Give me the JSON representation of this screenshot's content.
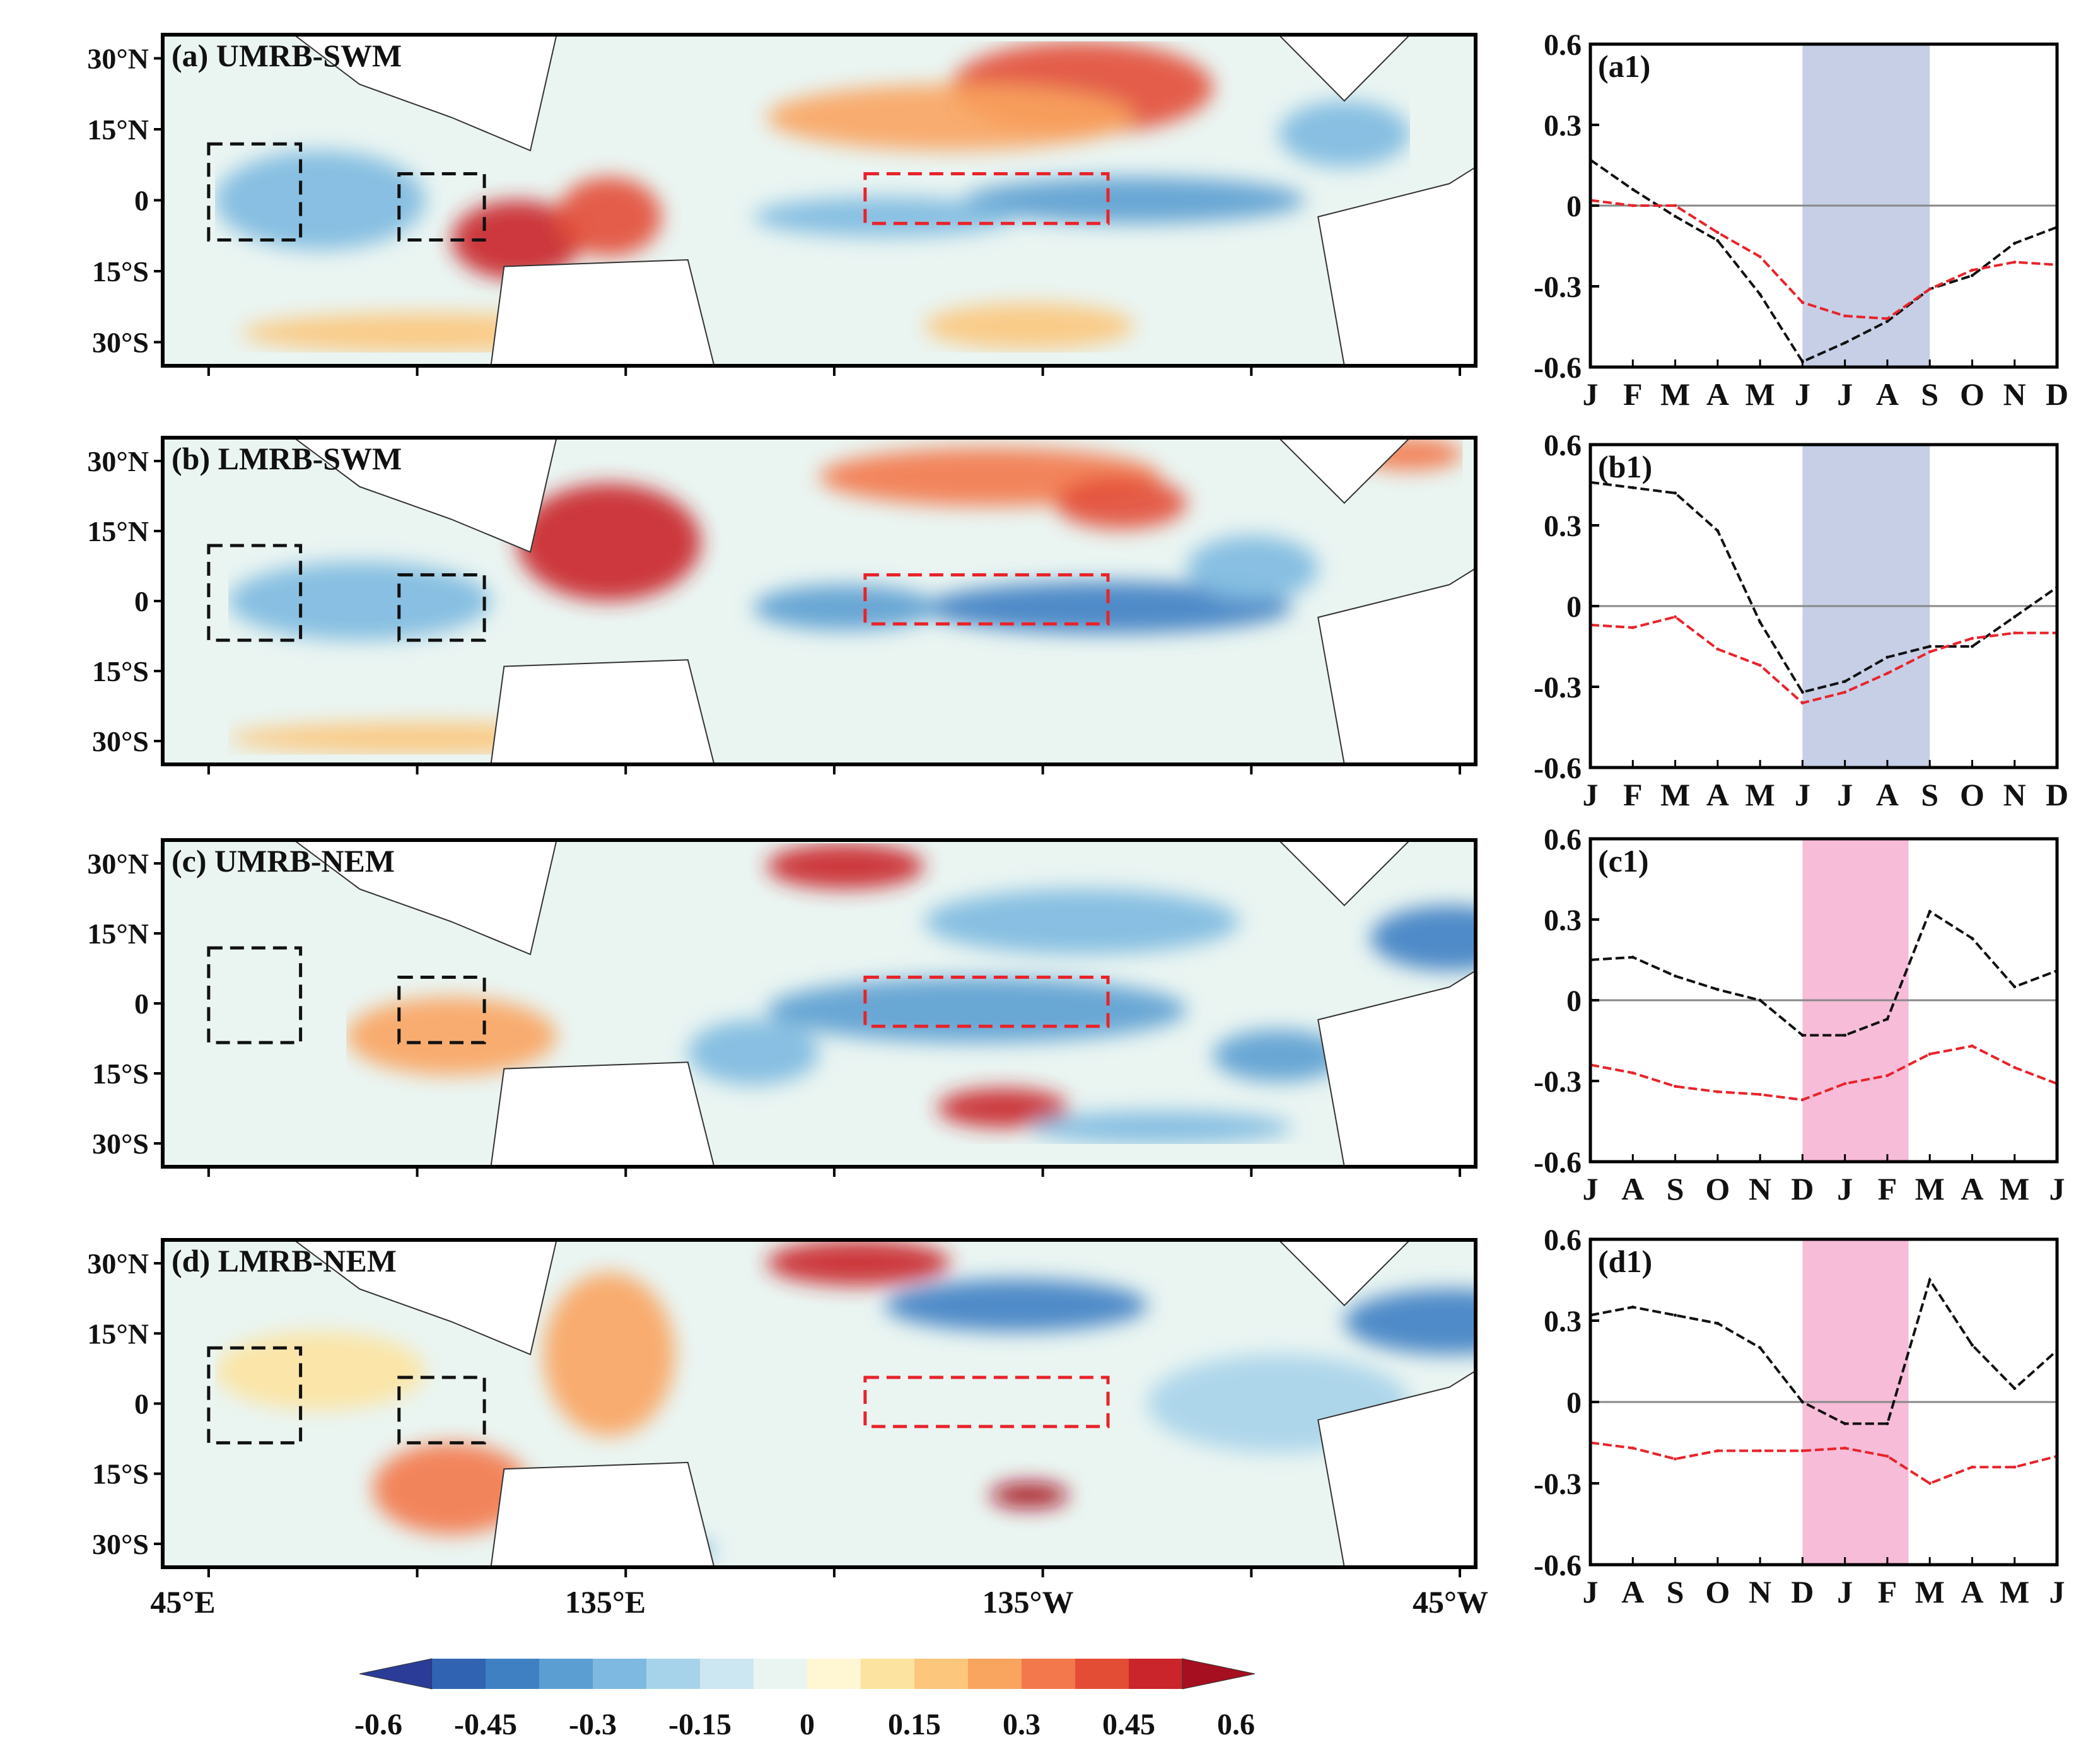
{
  "figure": {
    "lat_ticks": [
      "30°N",
      "15°N",
      "0",
      "15°S",
      "30°S"
    ],
    "lon_ticks": [
      "45°E",
      "135°E",
      "135°W",
      "45°W"
    ],
    "colorbar": {
      "ticks": [
        "-0.6",
        "-0.45",
        "-0.3",
        "-0.15",
        "0",
        "0.15",
        "0.3",
        "0.45",
        "0.6"
      ],
      "colors": [
        "#2a3c97",
        "#3063b2",
        "#3f80c3",
        "#5b9ed2",
        "#7db9e0",
        "#a7d3ea",
        "#cce6f2",
        "#eaf5f2",
        "#fff6d3",
        "#fde3a0",
        "#fcc67d",
        "#f9a45f",
        "#f3784b",
        "#e34d36",
        "#c9252a",
        "#a50f1f"
      ]
    },
    "lines": {
      "black": "#111111",
      "red": "#e8232a",
      "zero_line": "#888888"
    },
    "shading": {
      "summer": "#c6cfe6",
      "winter": "#f7bcd8"
    }
  },
  "chart_data": [
    {
      "type": "map",
      "title": "(a) UMRB-SWM"
    },
    {
      "type": "map",
      "title": "(b) LMRB-SWM"
    },
    {
      "type": "map",
      "title": "(c) UMRB-NEM"
    },
    {
      "type": "map",
      "title": "(d) LMRB-NEM"
    },
    {
      "type": "line",
      "title": "(a1)",
      "categories": [
        "J",
        "F",
        "M",
        "A",
        "M",
        "J",
        "J",
        "A",
        "S",
        "O",
        "N",
        "D"
      ],
      "ylim": [
        -0.6,
        0.6
      ],
      "yticks": [
        "0.6",
        "0.3",
        "0",
        "-0.3",
        "-0.6"
      ],
      "shade": {
        "from": 5,
        "to": 8,
        "color": "summer"
      },
      "series": [
        {
          "name": "black",
          "values": [
            0.17,
            0.06,
            -0.04,
            -0.13,
            -0.33,
            -0.58,
            -0.51,
            -0.43,
            -0.31,
            -0.26,
            -0.14,
            -0.08
          ]
        },
        {
          "name": "red",
          "values": [
            0.02,
            0.0,
            0.0,
            -0.1,
            -0.19,
            -0.36,
            -0.41,
            -0.42,
            -0.31,
            -0.24,
            -0.21,
            -0.22
          ]
        }
      ]
    },
    {
      "type": "line",
      "title": "(b1)",
      "categories": [
        "J",
        "F",
        "M",
        "A",
        "M",
        "J",
        "J",
        "A",
        "S",
        "O",
        "N",
        "D"
      ],
      "ylim": [
        -0.6,
        0.6
      ],
      "yticks": [
        "0.6",
        "0.3",
        "0",
        "-0.3",
        "-0.6"
      ],
      "shade": {
        "from": 5,
        "to": 8,
        "color": "summer"
      },
      "series": [
        {
          "name": "black",
          "values": [
            0.46,
            0.44,
            0.42,
            0.28,
            -0.06,
            -0.32,
            -0.28,
            -0.19,
            -0.15,
            -0.15,
            -0.04,
            0.07
          ]
        },
        {
          "name": "red",
          "values": [
            -0.07,
            -0.08,
            -0.04,
            -0.16,
            -0.22,
            -0.36,
            -0.32,
            -0.25,
            -0.17,
            -0.12,
            -0.1,
            -0.1
          ]
        }
      ]
    },
    {
      "type": "line",
      "title": "(c1)",
      "categories": [
        "J",
        "A",
        "S",
        "O",
        "N",
        "D",
        "J",
        "F",
        "M",
        "A",
        "M",
        "J"
      ],
      "ylim": [
        -0.6,
        0.6
      ],
      "yticks": [
        "0.6",
        "0.3",
        "0",
        "-0.3",
        "-0.6"
      ],
      "shade": {
        "from": 5,
        "to": 7.5,
        "color": "winter"
      },
      "series": [
        {
          "name": "black",
          "values": [
            0.15,
            0.16,
            0.09,
            0.04,
            0.0,
            -0.13,
            -0.13,
            -0.07,
            0.33,
            0.23,
            0.05,
            0.11
          ]
        },
        {
          "name": "red",
          "values": [
            -0.24,
            -0.27,
            -0.32,
            -0.34,
            -0.35,
            -0.37,
            -0.31,
            -0.28,
            -0.2,
            -0.17,
            -0.25,
            -0.31
          ]
        }
      ]
    },
    {
      "type": "line",
      "title": "(d1)",
      "categories": [
        "J",
        "A",
        "S",
        "O",
        "N",
        "D",
        "J",
        "F",
        "M",
        "A",
        "M",
        "J"
      ],
      "ylim": [
        -0.6,
        0.6
      ],
      "yticks": [
        "0.6",
        "0.3",
        "0",
        "-0.3",
        "-0.6"
      ],
      "shade": {
        "from": 5,
        "to": 7.5,
        "color": "winter"
      },
      "series": [
        {
          "name": "black",
          "values": [
            0.32,
            0.35,
            0.32,
            0.29,
            0.2,
            0.0,
            -0.08,
            -0.08,
            0.45,
            0.21,
            0.05,
            0.19
          ]
        },
        {
          "name": "red",
          "values": [
            -0.15,
            -0.17,
            -0.21,
            -0.18,
            -0.18,
            -0.18,
            -0.17,
            -0.2,
            -0.3,
            -0.24,
            -0.24,
            -0.2
          ]
        }
      ]
    }
  ]
}
